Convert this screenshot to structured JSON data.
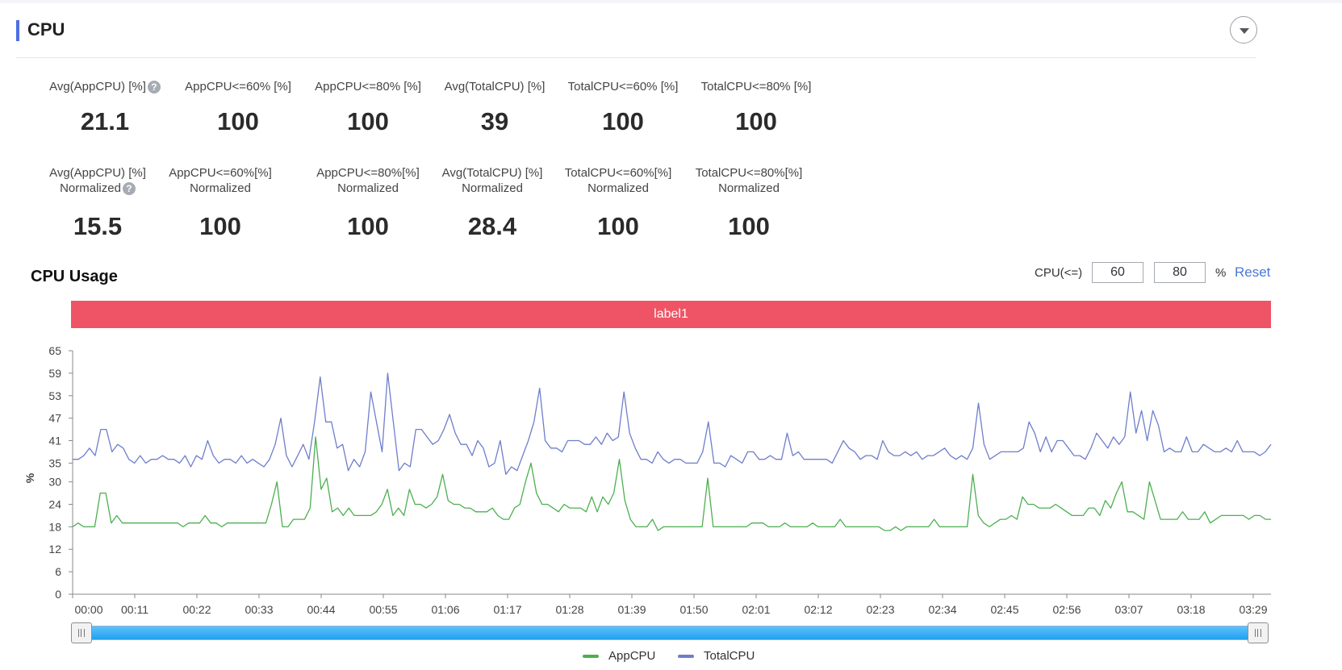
{
  "section": {
    "title": "CPU"
  },
  "metrics_row1": [
    {
      "label": "Avg(AppCPU) [%]",
      "value": "21.1",
      "help": "?"
    },
    {
      "label": "AppCPU<=60% [%]",
      "value": "100"
    },
    {
      "label": "AppCPU<=80% [%]",
      "value": "100"
    },
    {
      "label": "Avg(TotalCPU) [%]",
      "value": "39"
    },
    {
      "label": "TotalCPU<=60% [%]",
      "value": "100"
    },
    {
      "label": "TotalCPU<=80% [%]",
      "value": "100"
    }
  ],
  "metrics_row2": [
    {
      "label1": "Avg(AppCPU) [%]",
      "label2": "Normalized",
      "value": "15.5",
      "help": "?"
    },
    {
      "label1": "AppCPU<=60%[%]",
      "label2": "Normalized",
      "value": "100"
    },
    {
      "label1": "AppCPU<=80%[%]",
      "label2": "Normalized",
      "value": "100"
    },
    {
      "label1": "Avg(TotalCPU) [%]",
      "label2": "Normalized",
      "value": "28.4"
    },
    {
      "label1": "TotalCPU<=60%[%]",
      "label2": "Normalized",
      "value": "100"
    },
    {
      "label1": "TotalCPU<=80%[%]",
      "label2": "Normalized",
      "value": "100"
    }
  ],
  "usage": {
    "title": "CPU Usage",
    "threshold_label": "CPU(<=)",
    "threshold_low": "60",
    "threshold_high": "80",
    "unit": "%",
    "reset_label": "Reset",
    "band_label": "label1"
  },
  "colors": {
    "app": "#4caf50",
    "total": "#6f7ecb",
    "band": "#ee5465",
    "accent": "#4c6fe0"
  },
  "chart_data": {
    "type": "line",
    "ylabel": "%",
    "ylim": [
      0,
      65
    ],
    "yticks": [
      0,
      6,
      12,
      18,
      24,
      30,
      35,
      41,
      47,
      53,
      59,
      65
    ],
    "xticks": [
      "00:00",
      "00:11",
      "00:22",
      "00:33",
      "00:44",
      "00:55",
      "01:06",
      "01:17",
      "01:28",
      "01:39",
      "01:50",
      "02:01",
      "02:12",
      "02:23",
      "02:34",
      "02:45",
      "02:56",
      "03:07",
      "03:18",
      "03:29"
    ],
    "series": [
      {
        "name": "AppCPU",
        "values": [
          18,
          19,
          18,
          18,
          18,
          27,
          27,
          19,
          21,
          19,
          19,
          19,
          19,
          19,
          19,
          19,
          19,
          19,
          19,
          19,
          18,
          19,
          19,
          19,
          21,
          19,
          19,
          18,
          19,
          19,
          19,
          19,
          19,
          19,
          19,
          19,
          24,
          30,
          18,
          18,
          20,
          20,
          20,
          23,
          42,
          28,
          31,
          22,
          23,
          21,
          23,
          21,
          21,
          21,
          21,
          22,
          24,
          28,
          21,
          23,
          21,
          28,
          24,
          24,
          23,
          24,
          26,
          32,
          25,
          24,
          24,
          23,
          23,
          22,
          22,
          22,
          23,
          21,
          20,
          20,
          23,
          24,
          30,
          35,
          27,
          24,
          24,
          23,
          22,
          24,
          23,
          23,
          23,
          22,
          26,
          22,
          26,
          24,
          27,
          36,
          25,
          20,
          18,
          18,
          18,
          20,
          17,
          18,
          18,
          18,
          18,
          18,
          18,
          18,
          18,
          31,
          18,
          18,
          18,
          18,
          18,
          18,
          18,
          19,
          19,
          19,
          18,
          18,
          18,
          19,
          18,
          18,
          18,
          18,
          19,
          18,
          18,
          18,
          18,
          20,
          18,
          18,
          18,
          18,
          18,
          18,
          18,
          17,
          17,
          18,
          17,
          18,
          18,
          18,
          18,
          18,
          20,
          18,
          18,
          18,
          18,
          18,
          18,
          32,
          21,
          19,
          18,
          19,
          20,
          20,
          21,
          20,
          26,
          24,
          24,
          23,
          23,
          23,
          24,
          23,
          22,
          21,
          21,
          21,
          23,
          23,
          21,
          25,
          23,
          27,
          30,
          22,
          22,
          21,
          20,
          30,
          25,
          20,
          20,
          20,
          20,
          22,
          20,
          20,
          20,
          22,
          19,
          20,
          21,
          21,
          21,
          21,
          21,
          20,
          21,
          21,
          20,
          20
        ]
      },
      {
        "name": "TotalCPU",
        "values": [
          36,
          36,
          37,
          39,
          37,
          44,
          44,
          38,
          40,
          39,
          36,
          35,
          37,
          35,
          36,
          36,
          37,
          36,
          36,
          35,
          37,
          34,
          37,
          36,
          41,
          37,
          35,
          36,
          36,
          35,
          37,
          35,
          36,
          35,
          34,
          36,
          40,
          47,
          37,
          34,
          37,
          40,
          36,
          46,
          58,
          46,
          46,
          39,
          40,
          33,
          36,
          34,
          38,
          54,
          46,
          38,
          59,
          46,
          33,
          35,
          34,
          44,
          44,
          42,
          40,
          41,
          44,
          48,
          43,
          40,
          40,
          37,
          41,
          39,
          34,
          35,
          41,
          32,
          34,
          33,
          37,
          41,
          46,
          55,
          41,
          39,
          39,
          38,
          41,
          41,
          41,
          40,
          40,
          42,
          40,
          43,
          41,
          42,
          54,
          43,
          39,
          36,
          36,
          35,
          38,
          36,
          35,
          36,
          36,
          35,
          35,
          35,
          38,
          46,
          35,
          35,
          34,
          37,
          36,
          35,
          38,
          38,
          36,
          36,
          37,
          36,
          36,
          43,
          37,
          38,
          36,
          36,
          36,
          36,
          36,
          35,
          38,
          41,
          39,
          38,
          36,
          37,
          37,
          36,
          41,
          38,
          37,
          37,
          38,
          37,
          38,
          36,
          37,
          37,
          38,
          39,
          37,
          36,
          37,
          36,
          39,
          51,
          40,
          36,
          37,
          38,
          38,
          38,
          38,
          39,
          46,
          43,
          38,
          42,
          38,
          41,
          41,
          39,
          37,
          37,
          36,
          39,
          43,
          41,
          39,
          42,
          40,
          42,
          54,
          43,
          49,
          41,
          49,
          45,
          38,
          39,
          38,
          38,
          42,
          38,
          38,
          40,
          39,
          38,
          38,
          39,
          38,
          41,
          38,
          38,
          38,
          37,
          38,
          40
        ]
      }
    ]
  },
  "legend": {
    "app": "AppCPU",
    "total": "TotalCPU"
  }
}
